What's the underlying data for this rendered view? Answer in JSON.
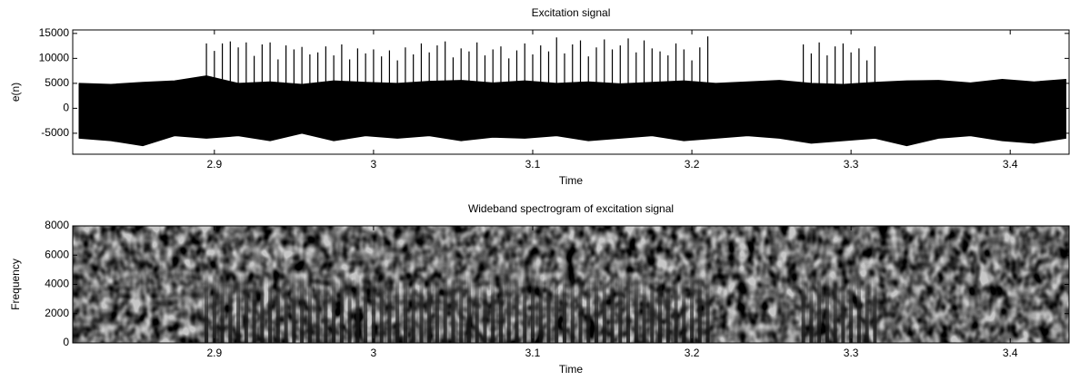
{
  "chart_data": [
    {
      "type": "signal",
      "title": "Excitation signal",
      "xlabel": "Time",
      "ylabel": "e(n)",
      "color": "#000000",
      "xlim": [
        2.811,
        3.437
      ],
      "xticks": [
        2.9,
        3,
        3.1,
        3.2,
        3.3,
        3.4
      ],
      "ylim": [
        -9200,
        15700
      ],
      "yticks": [
        -5000,
        0,
        5000,
        10000,
        15000
      ],
      "envelope": {
        "x": [
          2.815,
          2.835,
          2.855,
          2.875,
          2.895,
          2.915,
          2.935,
          2.955,
          2.975,
          2.995,
          3.015,
          3.035,
          3.055,
          3.075,
          3.095,
          3.115,
          3.135,
          3.155,
          3.175,
          3.195,
          3.215,
          3.235,
          3.255,
          3.275,
          3.295,
          3.315,
          3.335,
          3.355,
          3.375,
          3.395,
          3.415,
          3.435
        ],
        "upper": [
          5000,
          4800,
          5200,
          5500,
          6500,
          5000,
          5300,
          4800,
          5500,
          5200,
          5000,
          5400,
          5600,
          5100,
          5500,
          5000,
          5300,
          4900,
          5200,
          5500,
          5000,
          5300,
          5600,
          5000,
          4800,
          5200,
          5500,
          5600,
          5100,
          5800,
          5300,
          5800
        ],
        "lower": [
          -6000,
          -6500,
          -7500,
          -5500,
          -6000,
          -5500,
          -6500,
          -5000,
          -6500,
          -5500,
          -6000,
          -5500,
          -6500,
          -5800,
          -6000,
          -5500,
          -6500,
          -6000,
          -5500,
          -6500,
          -6000,
          -5500,
          -6000,
          -7000,
          -6500,
          -6000,
          -7500,
          -6000,
          -5500,
          -6500,
          -7000,
          -6000
        ]
      },
      "pulses": {
        "x": [
          2.895,
          2.9,
          2.905,
          2.91,
          2.915,
          2.92,
          2.925,
          2.93,
          2.935,
          2.94,
          2.945,
          2.95,
          2.955,
          2.96,
          2.965,
          2.97,
          2.975,
          2.98,
          2.985,
          2.99,
          2.995,
          3,
          3.005,
          3.01,
          3.015,
          3.02,
          3.025,
          3.03,
          3.035,
          3.04,
          3.045,
          3.05,
          3.055,
          3.06,
          3.065,
          3.07,
          3.075,
          3.08,
          3.085,
          3.09,
          3.095,
          3.1,
          3.105,
          3.11,
          3.115,
          3.12,
          3.125,
          3.13,
          3.135,
          3.14,
          3.145,
          3.15,
          3.155,
          3.16,
          3.165,
          3.17,
          3.175,
          3.18,
          3.185,
          3.19,
          3.195,
          3.2,
          3.205,
          3.21,
          3.27,
          3.275,
          3.28,
          3.285,
          3.29,
          3.295,
          3.3,
          3.305,
          3.31,
          3.315
        ],
        "values": [
          13000,
          11500,
          13000,
          13400,
          12200,
          13200,
          10500,
          12800,
          13200,
          9800,
          12600,
          11800,
          12300,
          10800,
          11200,
          12400,
          10600,
          12800,
          9800,
          12000,
          11000,
          11800,
          10400,
          11600,
          9600,
          12200,
          10800,
          13000,
          11200,
          12600,
          13400,
          10200,
          12000,
          11400,
          13200,
          10600,
          11800,
          12400,
          10000,
          11600,
          13000,
          10800,
          12600,
          11400,
          14200,
          11000,
          12800,
          13600,
          10400,
          12200,
          13800,
          11800,
          12600,
          14000,
          11200,
          13600,
          12000,
          11400,
          10600,
          13000,
          11800,
          9600,
          12200,
          14400,
          12800,
          11000,
          13200,
          10600,
          12400,
          13000,
          11200,
          12000,
          9600,
          12400
        ]
      }
    },
    {
      "type": "spectrogram",
      "title": "Wideband spectrogram of excitation signal",
      "xlabel": "Time",
      "ylabel": "Frequency",
      "xlim": [
        2.811,
        3.437
      ],
      "xticks": [
        2.9,
        3,
        3.1,
        3.2,
        3.3,
        3.4
      ],
      "ylim": [
        0,
        8000
      ],
      "yticks": [
        0,
        2000,
        4000,
        6000,
        8000
      ]
    }
  ]
}
